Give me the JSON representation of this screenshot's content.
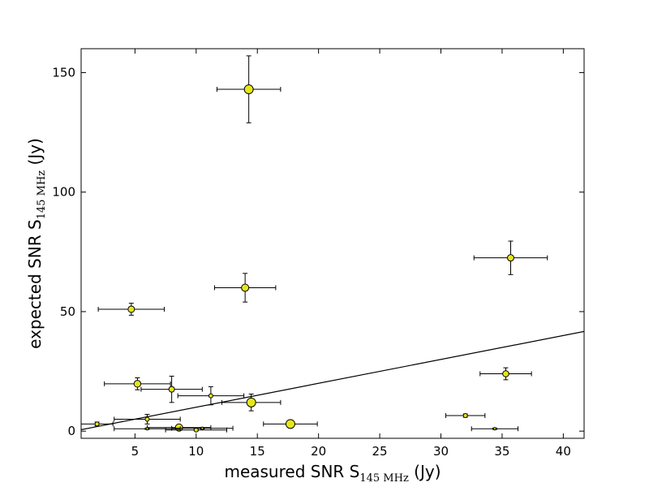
{
  "chart_data": {
    "type": "scatter",
    "xlabel": {
      "prefix": "measured SNR S",
      "subscript": "145 MHz",
      "suffix": " (Jy)"
    },
    "ylabel": {
      "prefix": "expected SNR S",
      "subscript": "145 MHz",
      "suffix": " (Jy)"
    },
    "xlim": [
      0.6,
      41.7
    ],
    "ylim": [
      -3,
      160
    ],
    "xticks": [
      5,
      10,
      15,
      20,
      25,
      30,
      35,
      40
    ],
    "yticks": [
      0,
      50,
      100,
      150
    ],
    "grid": false,
    "marker_color": "#e6e619",
    "line": {
      "points": [
        [
          0.6,
          0.6
        ],
        [
          41.7,
          41.7
        ]
      ]
    },
    "points": [
      {
        "x": 14.3,
        "y": 143.0,
        "xerr": 2.6,
        "yerr": 14.0,
        "size": 5.5
      },
      {
        "x": 35.7,
        "y": 72.5,
        "xerr": 3.0,
        "yerr": 7.0,
        "size": 4.0
      },
      {
        "x": 14.0,
        "y": 60.0,
        "xerr": 2.5,
        "yerr": 6.0,
        "size": 4.5
      },
      {
        "x": 4.7,
        "y": 51.0,
        "xerr": 2.7,
        "yerr": 2.5,
        "size": 4.0
      },
      {
        "x": 35.3,
        "y": 24.0,
        "xerr": 2.1,
        "yerr": 2.5,
        "size": 3.8
      },
      {
        "x": 5.2,
        "y": 19.8,
        "xerr": 2.7,
        "yerr": 2.5,
        "size": 4.2
      },
      {
        "x": 8.0,
        "y": 17.5,
        "xerr": 2.5,
        "yerr": 5.5,
        "size": 3.5
      },
      {
        "x": 11.2,
        "y": 14.8,
        "xerr": 2.7,
        "yerr": 3.8,
        "size": 2.5
      },
      {
        "x": 14.5,
        "y": 12.0,
        "xerr": 2.4,
        "yerr": 3.5,
        "size": 5.5
      },
      {
        "x": 17.7,
        "y": 3.0,
        "xerr": 2.2,
        "yerr": 0.5,
        "size": 5.5
      },
      {
        "x": 1.9,
        "y": 3.0,
        "xerr": 1.3,
        "yerr": 0.8,
        "size": 2.5
      },
      {
        "x": 6.0,
        "y": 5.0,
        "xerr": 2.7,
        "yerr": 2.0,
        "size": 2.5
      },
      {
        "x": 8.6,
        "y": 1.5,
        "xerr": 2.6,
        "yerr": 0.5,
        "size": 4.5
      },
      {
        "x": 10.0,
        "y": 0.5,
        "xerr": 2.5,
        "yerr": 0.4,
        "size": 2.5
      },
      {
        "x": 10.5,
        "y": 1.2,
        "xerr": 2.5,
        "yerr": 0.3,
        "size": 1.5
      },
      {
        "x": 6.0,
        "y": 1.0,
        "xerr": 2.7,
        "yerr": 0.3,
        "size": 1.5
      },
      {
        "x": 32.0,
        "y": 6.5,
        "xerr": 1.6,
        "yerr": 0.7,
        "size": 2.5
      },
      {
        "x": 34.4,
        "y": 1.0,
        "xerr": 1.9,
        "yerr": 0.3,
        "size": 1.5
      }
    ]
  }
}
